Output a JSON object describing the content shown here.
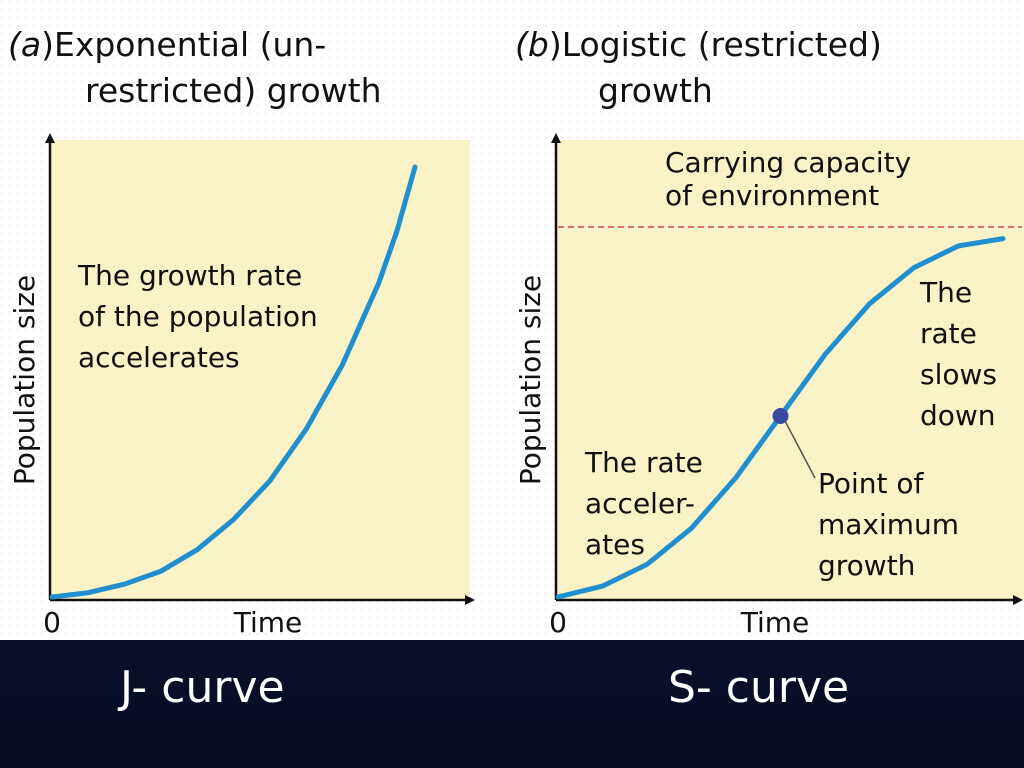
{
  "chart_data": [
    {
      "type": "line",
      "panel_label": "a",
      "title": ")Exponential (un-\nrestricted) growth",
      "xlabel": "Time",
      "ylabel": "Population size",
      "x_tick_label": "0",
      "annotations": [
        "The growth rate\nof the population\naccelerates"
      ],
      "curve_shape": "exponential",
      "series": [
        {
          "x": [
            0,
            0.1,
            0.2,
            0.3,
            0.4,
            0.5,
            0.6,
            0.7,
            0.8,
            0.9,
            0.95,
            1.0
          ],
          "values": [
            0,
            0.01,
            0.03,
            0.06,
            0.11,
            0.18,
            0.27,
            0.39,
            0.54,
            0.73,
            0.85,
            1.0
          ]
        }
      ],
      "xlim": [
        0,
        1.1
      ],
      "ylim": [
        0,
        1.1
      ],
      "grid": false,
      "curve_color": "#1f8fd0",
      "background_color": "#faf3c8"
    },
    {
      "type": "line",
      "panel_label": "b",
      "title": ")Logistic (restricted)\ngrowth",
      "xlabel": "Time",
      "ylabel": "Population size",
      "x_tick_label": "0",
      "carrying_capacity_label": "Carrying capacity\nof environment",
      "carrying_capacity": 1.0,
      "annotations": [
        "The rate\naccelerates-\nates",
        "The\nrate\nslows\ndown",
        "Point of\nmaximum\ngrowth"
      ],
      "annotation_text": {
        "accelerates": "The rate\nacceler-\nates",
        "slows": "The\nrate\nslows\ndown",
        "max_growth": "Point of\nmaximum\ngrowth"
      },
      "curve_shape": "logistic",
      "inflection_point": {
        "x": 0.5,
        "y": 0.5
      },
      "series": [
        {
          "x": [
            0,
            0.1,
            0.2,
            0.3,
            0.4,
            0.5,
            0.6,
            0.7,
            0.8,
            0.9,
            1.0
          ],
          "values": [
            0.0,
            0.03,
            0.09,
            0.19,
            0.33,
            0.5,
            0.67,
            0.81,
            0.91,
            0.97,
            0.99
          ]
        }
      ],
      "xlim": [
        0,
        1.1
      ],
      "ylim": [
        0,
        1.25
      ],
      "grid": false,
      "curve_color": "#1f8fd0",
      "capacity_line_color": "#d94060",
      "point_color": "#3a4aa0",
      "background_color": "#faf3c8"
    }
  ],
  "captions": {
    "left": "J- curve",
    "right": "S- curve"
  }
}
